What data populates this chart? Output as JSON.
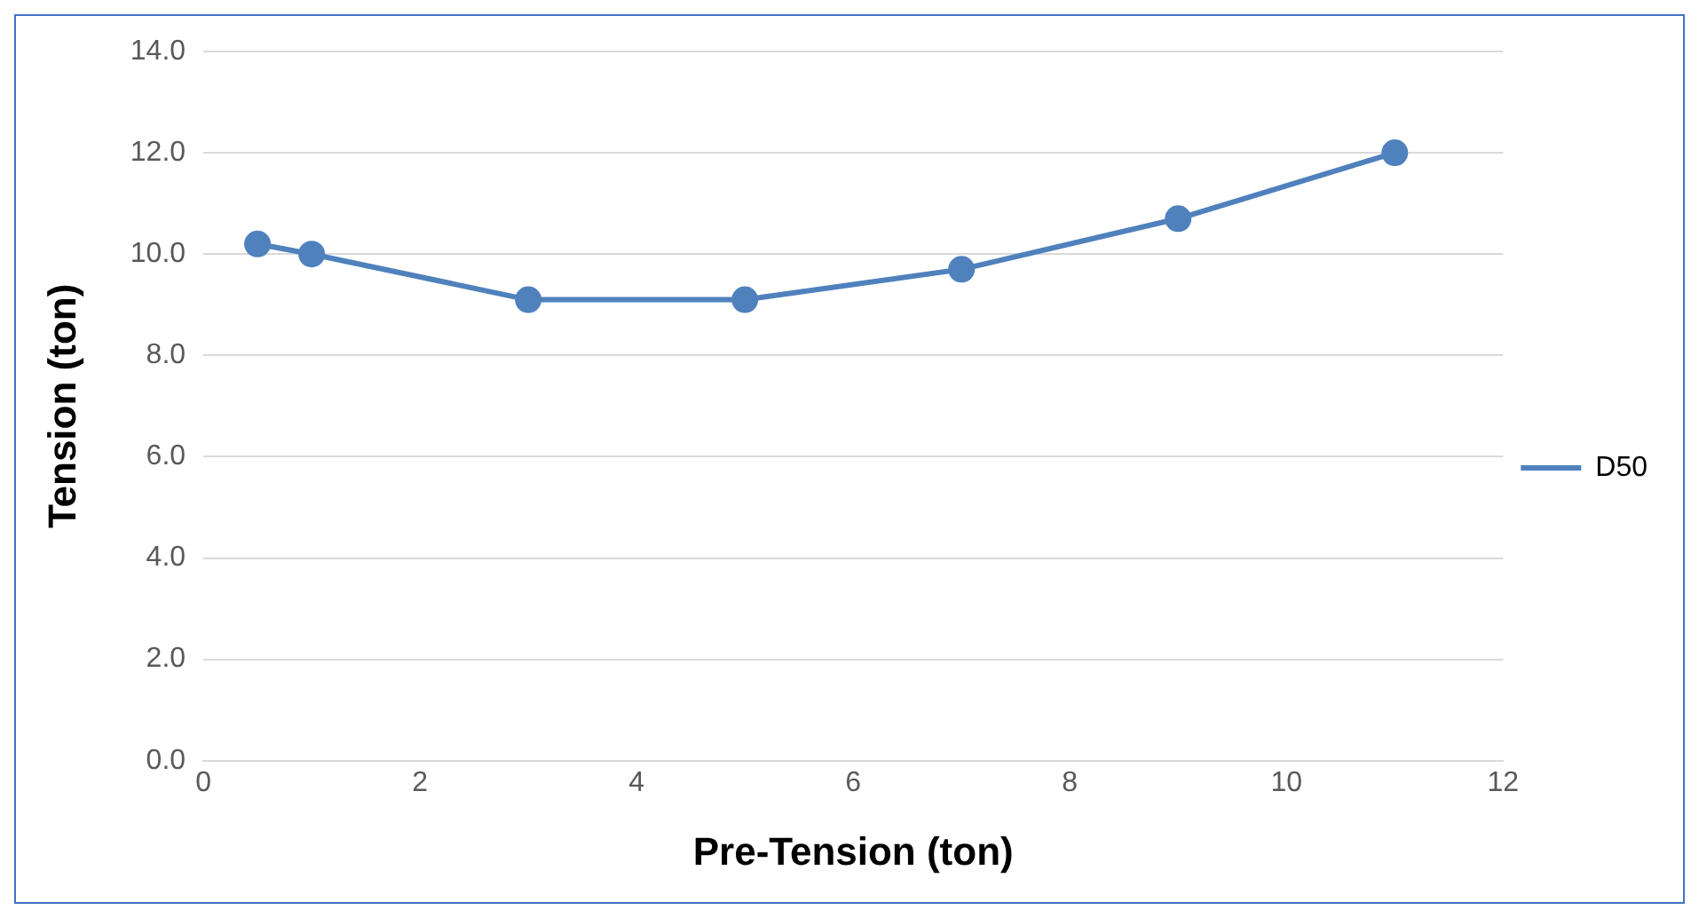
{
  "chart_data": {
    "type": "line",
    "xlabel": "Pre-Tension (ton)",
    "ylabel": "Tension (ton)",
    "x": [
      0.5,
      1,
      3,
      5,
      7,
      9,
      11
    ],
    "series": [
      {
        "name": "D50",
        "color": "#4f81bd",
        "values": [
          10.2,
          10.0,
          9.1,
          9.1,
          9.7,
          10.7,
          12.0
        ]
      }
    ],
    "xlim": [
      0,
      12
    ],
    "xticks": [
      0,
      2,
      4,
      6,
      8,
      10,
      12
    ],
    "ylim": [
      0,
      14
    ],
    "yticks": [
      {
        "value": 0,
        "label": "0.0"
      },
      {
        "value": 2,
        "label": "2.0"
      },
      {
        "value": 4,
        "label": "4.0"
      },
      {
        "value": 6,
        "label": "6.0"
      },
      {
        "value": 8,
        "label": "8.0"
      },
      {
        "value": 10,
        "label": "10.0"
      },
      {
        "value": 12,
        "label": "12.0"
      },
      {
        "value": 14,
        "label": "14.0"
      }
    ],
    "grid": "y",
    "legend": "right",
    "marker": "circle",
    "line_style": "solid"
  }
}
